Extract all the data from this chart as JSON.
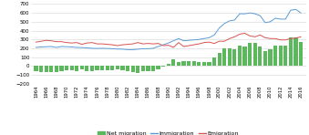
{
  "years": [
    1964,
    1965,
    1966,
    1967,
    1968,
    1969,
    1970,
    1971,
    1972,
    1973,
    1974,
    1975,
    1976,
    1977,
    1978,
    1979,
    1980,
    1981,
    1982,
    1983,
    1984,
    1985,
    1986,
    1987,
    1988,
    1989,
    1990,
    1991,
    1992,
    1993,
    1994,
    1995,
    1996,
    1997,
    1998,
    1999,
    2000,
    2001,
    2002,
    2003,
    2004,
    2005,
    2006,
    2007,
    2008,
    2009,
    2010,
    2011,
    2012,
    2013,
    2014,
    2015,
    2016
  ],
  "immigration": [
    210,
    215,
    218,
    220,
    210,
    220,
    218,
    215,
    210,
    208,
    205,
    200,
    198,
    200,
    198,
    195,
    192,
    190,
    185,
    185,
    190,
    195,
    195,
    200,
    220,
    240,
    260,
    285,
    310,
    285,
    290,
    295,
    300,
    310,
    320,
    350,
    430,
    480,
    510,
    520,
    590,
    590,
    600,
    590,
    570,
    490,
    500,
    540,
    530,
    530,
    630,
    640,
    600
  ],
  "emigration": [
    270,
    280,
    290,
    285,
    275,
    275,
    265,
    260,
    265,
    245,
    260,
    265,
    250,
    250,
    245,
    240,
    230,
    240,
    245,
    250,
    265,
    250,
    255,
    250,
    255,
    230,
    235,
    210,
    265,
    220,
    230,
    240,
    250,
    265,
    270,
    255,
    280,
    280,
    310,
    330,
    360,
    370,
    340,
    330,
    350,
    320,
    310,
    310,
    295,
    295,
    310,
    315,
    330
  ],
  "net_migration": [
    -55,
    -65,
    -70,
    -65,
    -65,
    -55,
    -50,
    -45,
    -55,
    -40,
    -55,
    -60,
    -50,
    -50,
    -47,
    -45,
    -40,
    -50,
    -55,
    -65,
    -75,
    -60,
    -60,
    -55,
    -35,
    -10,
    25,
    75,
    50,
    60,
    60,
    55,
    50,
    50,
    50,
    95,
    150,
    200,
    200,
    190,
    230,
    220,
    260,
    260,
    220,
    170,
    190,
    230,
    235,
    235,
    320,
    325,
    270
  ],
  "bar_color": "#5cb85c",
  "immigration_color": "#5b9bd5",
  "emigration_color": "#d9534f",
  "ylim": [
    -200,
    700
  ],
  "yticks": [
    -200,
    -100,
    0,
    100,
    200,
    300,
    400,
    500,
    600,
    700
  ],
  "legend_labels": [
    "Net migration",
    "Immigration",
    "Emigration"
  ],
  "bg_color": "#ffffff",
  "grid_color": "#d5d5d5"
}
